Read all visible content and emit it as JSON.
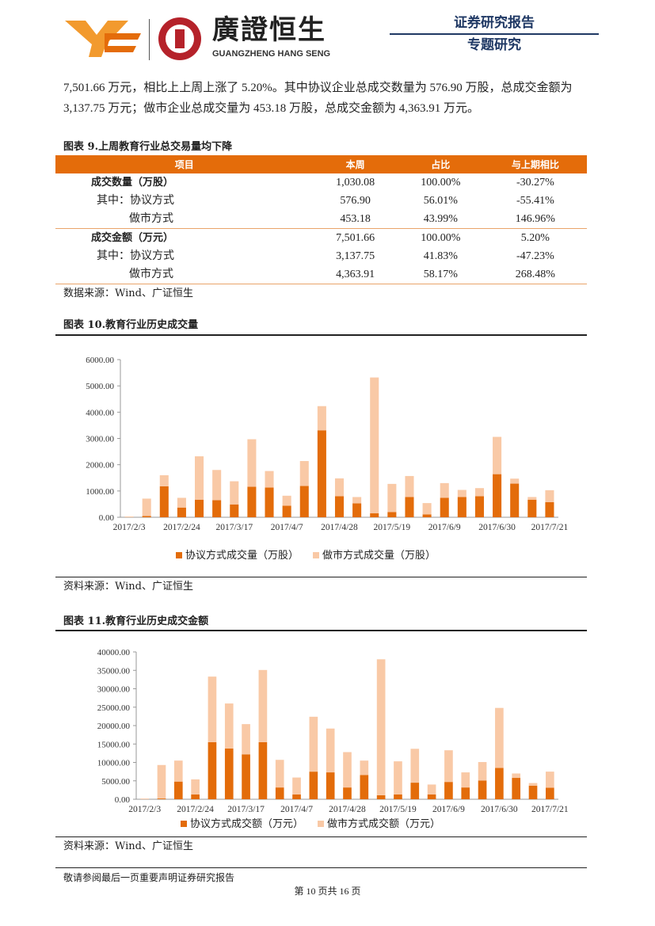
{
  "header": {
    "brand_cn": "廣證恒生",
    "brand_en": "GUANGZHENG HANG SENG",
    "report_type": "证券研究报告",
    "report_sub": "专题研究"
  },
  "paragraph": "7,501.66 万元，相比上上周上涨了 5.20%。其中协议企业总成交数量为 576.90 万股，总成交金额为 3,137.75 万元；做市企业总成交量为 453.18 万股，总成交金额为 4,363.91 万元。",
  "table9": {
    "caption": "图表 9.上周教育行业总交易量均下降",
    "headers": [
      "项目",
      "本周",
      "占比",
      "与上期相比"
    ],
    "rows": [
      [
        "成交数量（万股）",
        "1,030.08",
        "100.00%",
        "-30.27%"
      ],
      [
        "其中：协议方式",
        "576.90",
        "56.01%",
        "-55.41%"
      ],
      [
        "做市方式",
        "453.18",
        "43.99%",
        "146.96%"
      ],
      [
        "成交金额（万元）",
        "7,501.66",
        "100.00%",
        "5.20%"
      ],
      [
        "其中：协议方式",
        "3,137.75",
        "41.83%",
        "-47.23%"
      ],
      [
        "做市方式",
        "4,363.91",
        "58.17%",
        "268.48%"
      ]
    ],
    "source": "数据来源：Wind、广证恒生"
  },
  "colors": {
    "accent": "#e46c0a",
    "protocol": "#e36c0a",
    "market": "#f9c9a6",
    "title": "#1f3864"
  },
  "chart_data": [
    {
      "type": "bar",
      "stacked": true,
      "caption": "图表 10.教育行业历史成交量",
      "categories": [
        "2017/2/3",
        "2017/2/10",
        "2017/2/17",
        "2017/2/24",
        "2017/3/3",
        "2017/3/10",
        "2017/3/17",
        "2017/3/24",
        "2017/3/31",
        "2017/4/7",
        "2017/4/14",
        "2017/4/21",
        "2017/4/28",
        "2017/5/5",
        "2017/5/12",
        "2017/5/19",
        "2017/5/26",
        "2017/6/2",
        "2017/6/9",
        "2017/6/16",
        "2017/6/23",
        "2017/6/30",
        "2017/7/7",
        "2017/7/14",
        "2017/7/21"
      ],
      "tick_labels": [
        "2017/2/3",
        "2017/2/24",
        "2017/3/17",
        "2017/4/7",
        "2017/4/28",
        "2017/5/19",
        "2017/6/9",
        "2017/6/30",
        "2017/7/21"
      ],
      "y_ticks": [
        "0.00",
        "1000.00",
        "2000.00",
        "3000.00",
        "4000.00",
        "5000.00",
        "6000.00"
      ],
      "ylim": [
        0,
        6000
      ],
      "series": [
        {
          "name": "协议方式成交量（万股）",
          "values": [
            0,
            50,
            1180,
            370,
            670,
            650,
            490,
            1160,
            1130,
            440,
            1190,
            3310,
            800,
            530,
            150,
            200,
            770,
            110,
            740,
            770,
            800,
            1640,
            1280,
            670,
            576.9
          ]
        },
        {
          "name": "做市方式成交量（万股）",
          "values": [
            30,
            660,
            420,
            370,
            1650,
            1150,
            880,
            1810,
            630,
            380,
            950,
            920,
            680,
            240,
            5170,
            1070,
            800,
            430,
            560,
            270,
            310,
            1420,
            190,
            100,
            453.18
          ]
        }
      ],
      "legend": "bottom",
      "source": "资料来源：Wind、广证恒生"
    },
    {
      "type": "bar",
      "stacked": true,
      "caption": "图表 11.教育行业历史成交金额",
      "categories": [
        "2017/2/3",
        "2017/2/10",
        "2017/2/17",
        "2017/2/24",
        "2017/3/3",
        "2017/3/10",
        "2017/3/17",
        "2017/3/24",
        "2017/3/31",
        "2017/4/7",
        "2017/4/14",
        "2017/4/21",
        "2017/4/28",
        "2017/5/5",
        "2017/5/12",
        "2017/5/19",
        "2017/5/26",
        "2017/6/2",
        "2017/6/9",
        "2017/6/16",
        "2017/6/23",
        "2017/6/30",
        "2017/7/7",
        "2017/7/14",
        "2017/7/21"
      ],
      "tick_labels": [
        "2017/2/3",
        "2017/2/24",
        "2017/3/17",
        "2017/4/7",
        "2017/4/28",
        "2017/5/19",
        "2017/6/9",
        "2017/6/30",
        "2017/7/21"
      ],
      "y_ticks": [
        "0.00",
        "5000.00",
        "10000.00",
        "15000.00",
        "20000.00",
        "25000.00",
        "30000.00",
        "35000.00",
        "40000.00"
      ],
      "ylim": [
        0,
        40000
      ],
      "series": [
        {
          "name": "协议方式成交额（万元）",
          "values": [
            0,
            200,
            4800,
            1300,
            15500,
            13800,
            12200,
            15500,
            3200,
            1300,
            7500,
            7300,
            3200,
            6600,
            1100,
            1300,
            4500,
            1300,
            4700,
            3200,
            5100,
            8500,
            5800,
            3700,
            3137.75
          ]
        },
        {
          "name": "做市方式成交额（万元）",
          "values": [
            200,
            9100,
            5700,
            4100,
            17800,
            12200,
            8200,
            19600,
            7500,
            4600,
            14900,
            11900,
            9600,
            3900,
            36900,
            9000,
            9200,
            2700,
            8600,
            4100,
            5000,
            16300,
            1200,
            700,
            4363.91
          ]
        }
      ],
      "legend": "bottom",
      "source": "资料来源：Wind、广证恒生"
    }
  ],
  "footer": {
    "disclaimer": "敬请参阅最后一页重要声明证券研究报告",
    "page": "第 10 页共 16 页"
  }
}
